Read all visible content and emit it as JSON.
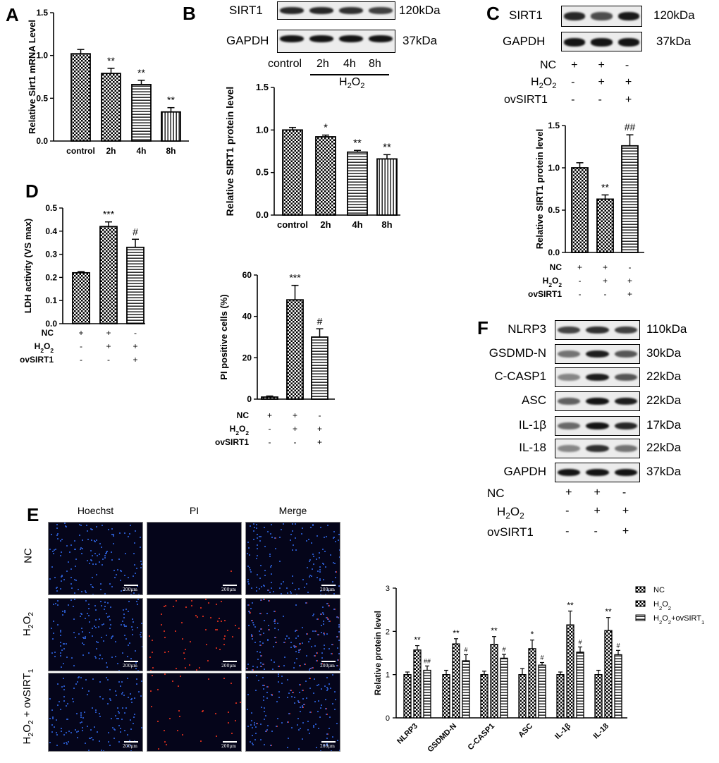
{
  "panel_letters": [
    "A",
    "B",
    "C",
    "D",
    "E",
    "F"
  ],
  "colors": {
    "ink": "#000000",
    "hoechst": "#2d5fd6",
    "pi": "#e0311e"
  },
  "chart_data": [
    {
      "id": "A",
      "type": "bar",
      "categories": [
        "control",
        "2h",
        "4h",
        "8h"
      ],
      "values": [
        1.02,
        0.79,
        0.66,
        0.34
      ],
      "errors": [
        0.05,
        0.06,
        0.05,
        0.05
      ],
      "annotations": [
        "",
        "**",
        "**",
        "**"
      ],
      "patterns": [
        "check",
        "check",
        "hstripe",
        "vstripe"
      ],
      "ylabel": "Relative Sirt1 mRNA Level",
      "ylim": [
        0,
        1.5
      ],
      "yticks": [
        "0.0",
        "0.5",
        "1.0",
        "1.5"
      ]
    },
    {
      "id": "B",
      "type": "bar",
      "categories": [
        "control",
        "2h",
        "4h",
        "8h"
      ],
      "values": [
        1.0,
        0.92,
        0.74,
        0.66
      ],
      "errors": [
        0.03,
        0.02,
        0.02,
        0.05
      ],
      "annotations": [
        "",
        "*",
        "**",
        "**"
      ],
      "patterns": [
        "check",
        "check",
        "hstripe",
        "vstripe"
      ],
      "ylabel": "Relative SIRT1 protein level",
      "ylim": [
        0,
        1.5
      ],
      "yticks": [
        "0.0",
        "0.5",
        "1.0",
        "1.5"
      ]
    },
    {
      "id": "C",
      "type": "bar",
      "values": [
        1.0,
        0.63,
        1.26
      ],
      "errors": [
        0.06,
        0.05,
        0.13
      ],
      "annotations": [
        "",
        "**",
        "##"
      ],
      "patterns": [
        "check",
        "check",
        "hstripe"
      ],
      "ylabel": "Relative SIRT1 protein level",
      "ylim": [
        0,
        1.5
      ],
      "yticks": [
        "0.0",
        "0.5",
        "1.0",
        "1.5"
      ],
      "condition_labels": [
        "NC",
        "H2O2",
        "ovSIRT1"
      ],
      "condition_signs": [
        [
          "+",
          "+",
          "-"
        ],
        [
          "-",
          "+",
          "+"
        ],
        [
          "-",
          "-",
          "+"
        ]
      ]
    },
    {
      "id": "D",
      "type": "bar",
      "values": [
        0.22,
        0.42,
        0.33
      ],
      "errors": [
        0.005,
        0.02,
        0.035
      ],
      "annotations": [
        "",
        "***",
        "#"
      ],
      "patterns": [
        "check",
        "check",
        "hstripe"
      ],
      "ylabel": "LDH activity (VS max)",
      "ylim": [
        0,
        0.5
      ],
      "yticks": [
        "0.0",
        "0.1",
        "0.2",
        "0.3",
        "0.4",
        "0.5"
      ],
      "condition_labels": [
        "NC",
        "H2O2",
        "ovSIRT1"
      ],
      "condition_signs": [
        [
          "+",
          "+",
          "-"
        ],
        [
          "-",
          "+",
          "+"
        ],
        [
          "-",
          "-",
          "+"
        ]
      ]
    },
    {
      "id": "PI",
      "type": "bar",
      "values": [
        1.0,
        48.0,
        30.0
      ],
      "errors": [
        0.5,
        7.0,
        4.0
      ],
      "annotations": [
        "",
        "***",
        "#"
      ],
      "patterns": [
        "check",
        "check",
        "hstripe"
      ],
      "ylabel": "PI positive cells (%)",
      "ylim": [
        0,
        60
      ],
      "yticks": [
        "0",
        "20",
        "40",
        "60"
      ],
      "condition_labels": [
        "NC",
        "H2O2",
        "ovSIRT1"
      ],
      "condition_signs": [
        [
          "+",
          "+",
          "-"
        ],
        [
          "-",
          "+",
          "+"
        ],
        [
          "-",
          "-",
          "+"
        ]
      ]
    },
    {
      "id": "F",
      "type": "bar",
      "categories": [
        "NLRP3",
        "GSDMD-N",
        "C-CASP1",
        "ASC",
        "IL-1β",
        "IL-18"
      ],
      "series": [
        {
          "name": "NC",
          "values": [
            1.0,
            1.0,
            1.0,
            1.0,
            1.0,
            1.0
          ],
          "errors": [
            0.06,
            0.1,
            0.08,
            0.14,
            0.06,
            0.1
          ]
        },
        {
          "name": "H2O2",
          "values": [
            1.57,
            1.71,
            1.7,
            1.6,
            2.15,
            2.02
          ],
          "errors": [
            0.1,
            0.12,
            0.18,
            0.2,
            0.32,
            0.3
          ]
        },
        {
          "name": "H2O2+ovSIRT1",
          "values": [
            1.1,
            1.32,
            1.38,
            1.22,
            1.52,
            1.46
          ],
          "errors": [
            0.1,
            0.14,
            0.09,
            0.06,
            0.12,
            0.1
          ]
        }
      ],
      "annotations": [
        [
          "",
          "**",
          "##"
        ],
        [
          "",
          "**",
          "#"
        ],
        [
          "",
          "**",
          "#"
        ],
        [
          "",
          "*",
          "#"
        ],
        [
          "",
          "**",
          "#"
        ],
        [
          "",
          "**",
          "#"
        ]
      ],
      "patterns": [
        "check",
        "check",
        "hstripe"
      ],
      "ylabel": "Relative protein level",
      "ylim": [
        0,
        3
      ],
      "yticks": [
        "0",
        "1",
        "2",
        "3"
      ],
      "legend_position": "top-right"
    }
  ],
  "blots": {
    "B": {
      "rows": [
        {
          "label": "SIRT1",
          "size": "120kDa",
          "intensity": [
            0.85,
            0.85,
            0.8,
            0.72
          ]
        },
        {
          "label": "GAPDH",
          "size": "37kDa",
          "intensity": [
            0.95,
            0.95,
            0.95,
            0.95
          ]
        }
      ],
      "lanes": [
        "control",
        "2h",
        "4h",
        "8h"
      ],
      "treatment": "H2O2"
    },
    "C": {
      "rows": [
        {
          "label": "SIRT1",
          "size": "120kDa",
          "intensity": [
            0.85,
            0.65,
            0.92
          ]
        },
        {
          "label": "GAPDH",
          "size": "37kDa",
          "intensity": [
            0.95,
            0.95,
            0.95
          ]
        }
      ],
      "condition_labels": [
        "NC",
        "H2O2",
        "ovSIRT1"
      ],
      "condition_signs": [
        [
          "+",
          "+",
          "-"
        ],
        [
          "-",
          "+",
          "+"
        ],
        [
          "-",
          "-",
          "+"
        ]
      ]
    },
    "F": {
      "rows": [
        {
          "label": "NLRP3",
          "size": "110kDa",
          "intensity": [
            0.7,
            0.8,
            0.72
          ]
        },
        {
          "label": "GSDMD-N",
          "size": "30kDa",
          "intensity": [
            0.45,
            0.9,
            0.6
          ]
        },
        {
          "label": "C-CASP1",
          "size": "22kDa",
          "intensity": [
            0.35,
            0.9,
            0.6
          ]
        },
        {
          "label": "ASC",
          "size": "22kDa",
          "intensity": [
            0.55,
            0.95,
            0.9
          ]
        },
        {
          "label": "IL-1β",
          "size": "17kDa",
          "intensity": [
            0.5,
            0.95,
            0.85
          ]
        },
        {
          "label": "IL-18",
          "size": "22kDa",
          "intensity": [
            0.35,
            0.8,
            0.45
          ]
        },
        {
          "label": "GAPDH",
          "size": "37kDa",
          "intensity": [
            0.95,
            0.95,
            0.95
          ]
        }
      ],
      "condition_labels": [
        "NC",
        "H2O2",
        "ovSIRT1"
      ],
      "condition_signs": [
        [
          "+",
          "+",
          "-"
        ],
        [
          "-",
          "+",
          "+"
        ],
        [
          "-",
          "-",
          "+"
        ]
      ]
    }
  },
  "micrographs": {
    "columns": [
      "Hoechst",
      "PI",
      "Merge"
    ],
    "rows": [
      "NC",
      "H2O2",
      "H2O2 + ovSIRT1"
    ],
    "pi_density": [
      0.01,
      0.45,
      0.18
    ],
    "scale_text": "200μm"
  }
}
